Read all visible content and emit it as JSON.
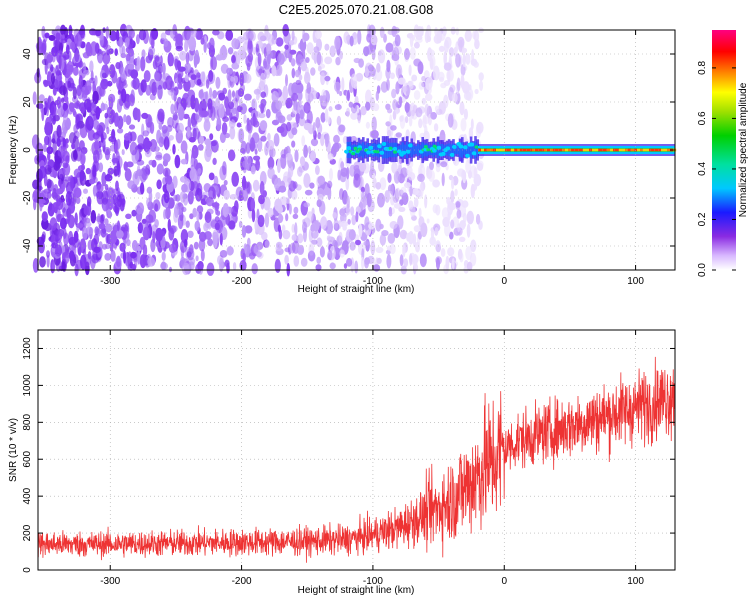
{
  "title": "C2E5.2025.070.21.08.G08",
  "colors": {
    "snr_line": "#ee3333",
    "colorbar_low": "#ffffff",
    "colorbar_high": "#ff0080"
  },
  "chart_data": [
    {
      "type": "heatmap",
      "xlabel": "Height of straight line (km)",
      "ylabel": "Frequency (Hz)",
      "xlim": [
        -355,
        130
      ],
      "ylim": [
        -50,
        50
      ],
      "xticks": [
        -300,
        -200,
        -100,
        0,
        100
      ],
      "yticks": [
        -40,
        -20,
        0,
        20,
        40
      ],
      "xtick_labels": [
        "-300",
        "-200",
        "-100",
        "0",
        "100"
      ],
      "ytick_labels": [
        "-40",
        "-20",
        "0",
        "20",
        "40"
      ],
      "colorbar": {
        "label": "Normalized spectral amplitude",
        "range": [
          0,
          0.95
        ],
        "ticks": [
          0.0,
          0.2,
          0.4,
          0.6,
          0.8
        ],
        "tick_labels": [
          "0.0",
          "0.2",
          "0.4",
          "0.6",
          "0.8"
        ]
      },
      "features": {
        "noise_region_x": [
          -355,
          -25
        ],
        "signal_line_freq_hz": 0,
        "signal_start_x": -120,
        "signal_strong_from_x": -20
      }
    },
    {
      "type": "line",
      "xlabel": "Height of straight line (km)",
      "ylabel": "SNR (10 * v/v)",
      "xlim": [
        -355,
        130
      ],
      "ylim": [
        0,
        1300
      ],
      "xticks": [
        -300,
        -200,
        -100,
        0,
        100
      ],
      "yticks": [
        0,
        200,
        400,
        600,
        800,
        1000,
        1200
      ],
      "xtick_labels": [
        "-300",
        "-200",
        "-100",
        "0",
        "100"
      ],
      "ytick_labels": [
        "0",
        "200",
        "400",
        "600",
        "800",
        "1000",
        "1200"
      ],
      "series": [
        {
          "x": [
            -355,
            -300,
            -250,
            -200,
            -150,
            -120,
            -100,
            -80,
            -60,
            -40,
            -25,
            -15,
            -5,
            0,
            10,
            30,
            50,
            70,
            90,
            110,
            130
          ],
          "values": [
            140,
            140,
            145,
            150,
            155,
            165,
            190,
            230,
            300,
            380,
            480,
            560,
            620,
            650,
            700,
            740,
            780,
            820,
            860,
            900,
            950
          ]
        }
      ]
    }
  ]
}
